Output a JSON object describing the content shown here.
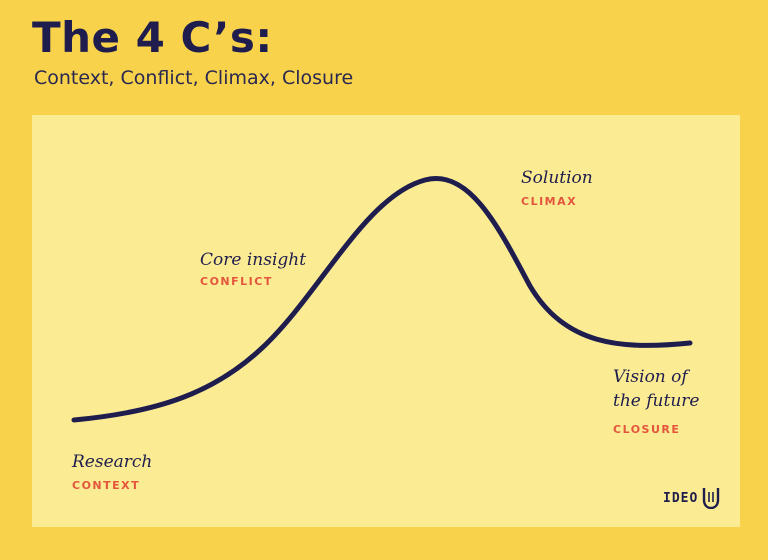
{
  "header": {
    "title": "The 4 C’s:",
    "subtitle": "Context, Conflict, Climax, Closure"
  },
  "stages": [
    {
      "title": "Research",
      "tag": "CONTEXT"
    },
    {
      "title": "Core insight",
      "tag": "CONFLICT"
    },
    {
      "title": "Solution",
      "tag": "CLIMAX"
    },
    {
      "title": "Vision of",
      "title_line2": "the future",
      "tag": "CLOSURE"
    }
  ],
  "logo": {
    "text": "IDEO"
  },
  "colors": {
    "background": "#f7d24a",
    "panel": "#fbec93",
    "curve": "#1f1d4d",
    "tag": "#e4553d"
  }
}
